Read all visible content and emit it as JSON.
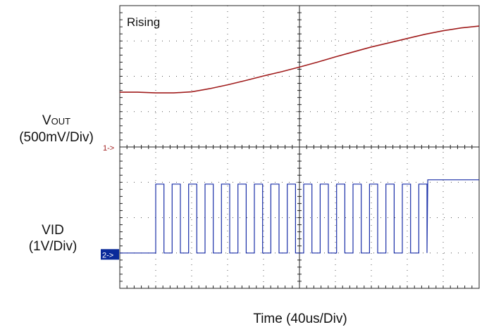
{
  "chart_data": {
    "type": "line",
    "annotation": "Rising",
    "xlabel": "Time  (40us/Div)",
    "divisions": {
      "x": 10,
      "y": 8
    },
    "channels": [
      {
        "id": "1",
        "marker": "1->",
        "label_main": "V",
        "label_sub": "OUT",
        "scale": "(500mV/Div)",
        "color": "#a01c1c",
        "marker_color": "#a01c1c",
        "reference_div": 4.0,
        "note": "values are divisions above the channel reference marker",
        "x": [
          0,
          0.5,
          1.0,
          1.5,
          2.0,
          2.5,
          3.0,
          3.5,
          4.0,
          4.5,
          5.0,
          5.5,
          6.0,
          6.5,
          7.0,
          7.5,
          8.0,
          8.5,
          9.0,
          9.5,
          10.0
        ],
        "values": [
          1.55,
          1.55,
          1.53,
          1.53,
          1.56,
          1.65,
          1.76,
          1.88,
          2.01,
          2.13,
          2.26,
          2.4,
          2.55,
          2.69,
          2.83,
          2.95,
          3.07,
          3.19,
          3.29,
          3.37,
          3.42
        ]
      },
      {
        "id": "2",
        "marker": "2->",
        "label_main": "VID",
        "scale": "(1V/Div)",
        "color": "#1a2fa8",
        "marker_color": "#0a2a9a",
        "reference_div": 0.95,
        "note": "digital pulse train; values are divisions above the reference marker",
        "low_level": 0.05,
        "high_level": 2.0,
        "x": [
          0,
          0.0,
          0.95,
          1.0,
          9.0,
          9.1,
          10.0
        ],
        "state_summary": "low until ~0.95 div, toggles ~33 times until ~8.6 div, then settles high",
        "toggle_start": 1.0,
        "toggle_end": 8.55,
        "final_level": 2.12
      }
    ]
  }
}
